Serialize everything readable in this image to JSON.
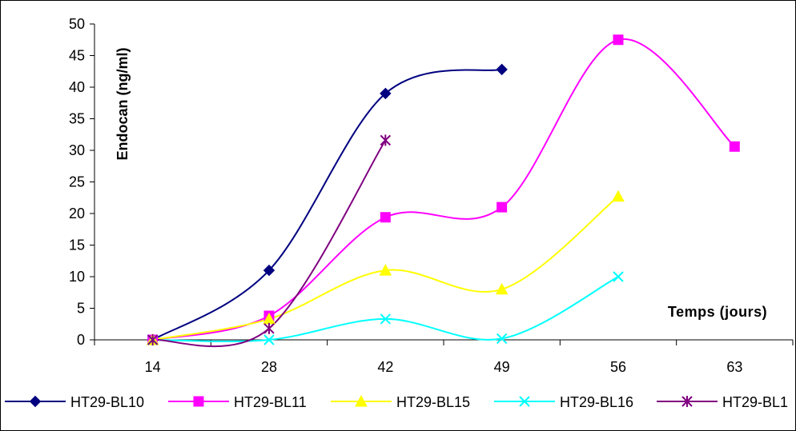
{
  "chart_data": {
    "type": "line",
    "title": "",
    "ylabel": "Endocan (ng/ml)",
    "xlabel": "Temps (jours)",
    "categories": [
      "14",
      "28",
      "42",
      "49",
      "56",
      "63"
    ],
    "ylim": [
      0,
      50
    ],
    "yticks": [
      0,
      5,
      10,
      15,
      20,
      25,
      30,
      35,
      40,
      45,
      50
    ],
    "grid": false,
    "legend_position": "bottom",
    "smooth": true,
    "series": [
      {
        "name": "HT29-BL10",
        "color": "#000080",
        "marker": "diamond",
        "values": [
          0,
          11,
          39,
          42.8,
          null,
          null
        ]
      },
      {
        "name": "HT29-BL11",
        "color": "#ff00ff",
        "marker": "square",
        "values": [
          0,
          3.8,
          19.4,
          21,
          47.5,
          30.6
        ]
      },
      {
        "name": "HT29-BL15",
        "color": "#ffff00",
        "marker": "triangle",
        "values": [
          0,
          3.3,
          11,
          8,
          22.7,
          null
        ]
      },
      {
        "name": "HT29-BL16",
        "color": "#00ffff",
        "marker": "x",
        "values": [
          0,
          0,
          3.3,
          0.2,
          10,
          null
        ]
      },
      {
        "name": "HT29-BL1",
        "color": "#800080",
        "marker": "star",
        "values": [
          0,
          1.8,
          31.6,
          null,
          null,
          null
        ]
      }
    ]
  }
}
